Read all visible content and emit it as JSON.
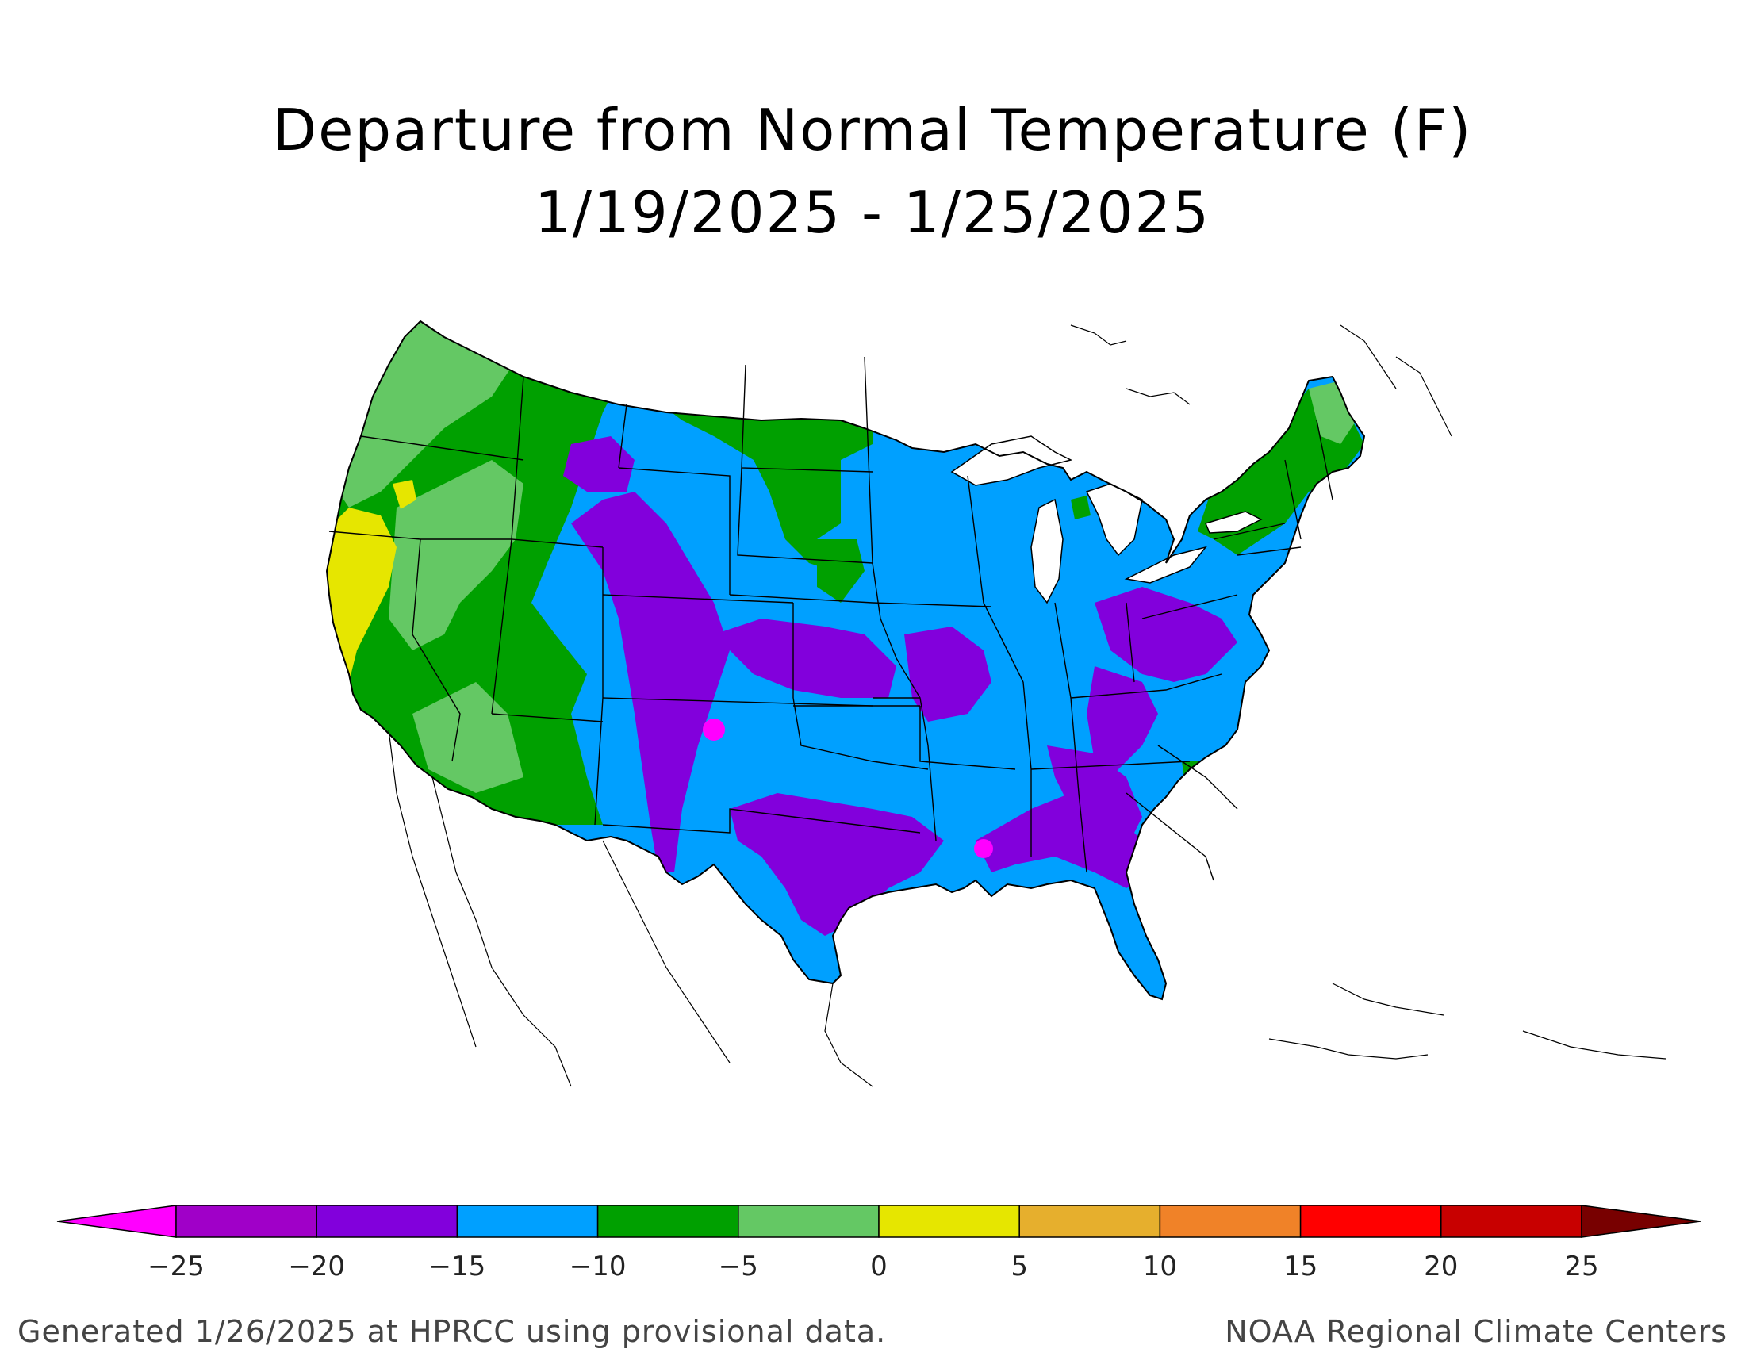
{
  "title": "Departure from Normal Temperature (F)",
  "subtitle": "1/19/2025 - 1/25/2025",
  "footer_left": "Generated 1/26/2025 at HPRCC using provisional data.",
  "footer_right": "NOAA Regional Climate Centers",
  "legend": {
    "tick_labels": [
      "-25",
      "-20",
      "-15",
      "-10",
      "-5",
      "0",
      "5",
      "10",
      "15",
      "20",
      "25"
    ],
    "bins": [
      {
        "color": "#ff00ff"
      },
      {
        "color": "#a000c8"
      },
      {
        "color": "#8200dc"
      },
      {
        "color": "#00a0ff"
      },
      {
        "color": "#00a000"
      },
      {
        "color": "#64c864"
      },
      {
        "color": "#e6e600"
      },
      {
        "color": "#e6af2d"
      },
      {
        "color": "#f08228"
      },
      {
        "color": "#ff0000"
      },
      {
        "color": "#c80000"
      },
      {
        "color": "#780000"
      }
    ]
  },
  "map_colors": {
    "magenta": "#ff00ff",
    "purple_dark": "#a000c8",
    "purple": "#8200dc",
    "blue": "#00a0ff",
    "green": "#00a000",
    "light_green": "#64c864",
    "yellow": "#e6e600",
    "outline": "#000000",
    "water": "#ffffff"
  }
}
